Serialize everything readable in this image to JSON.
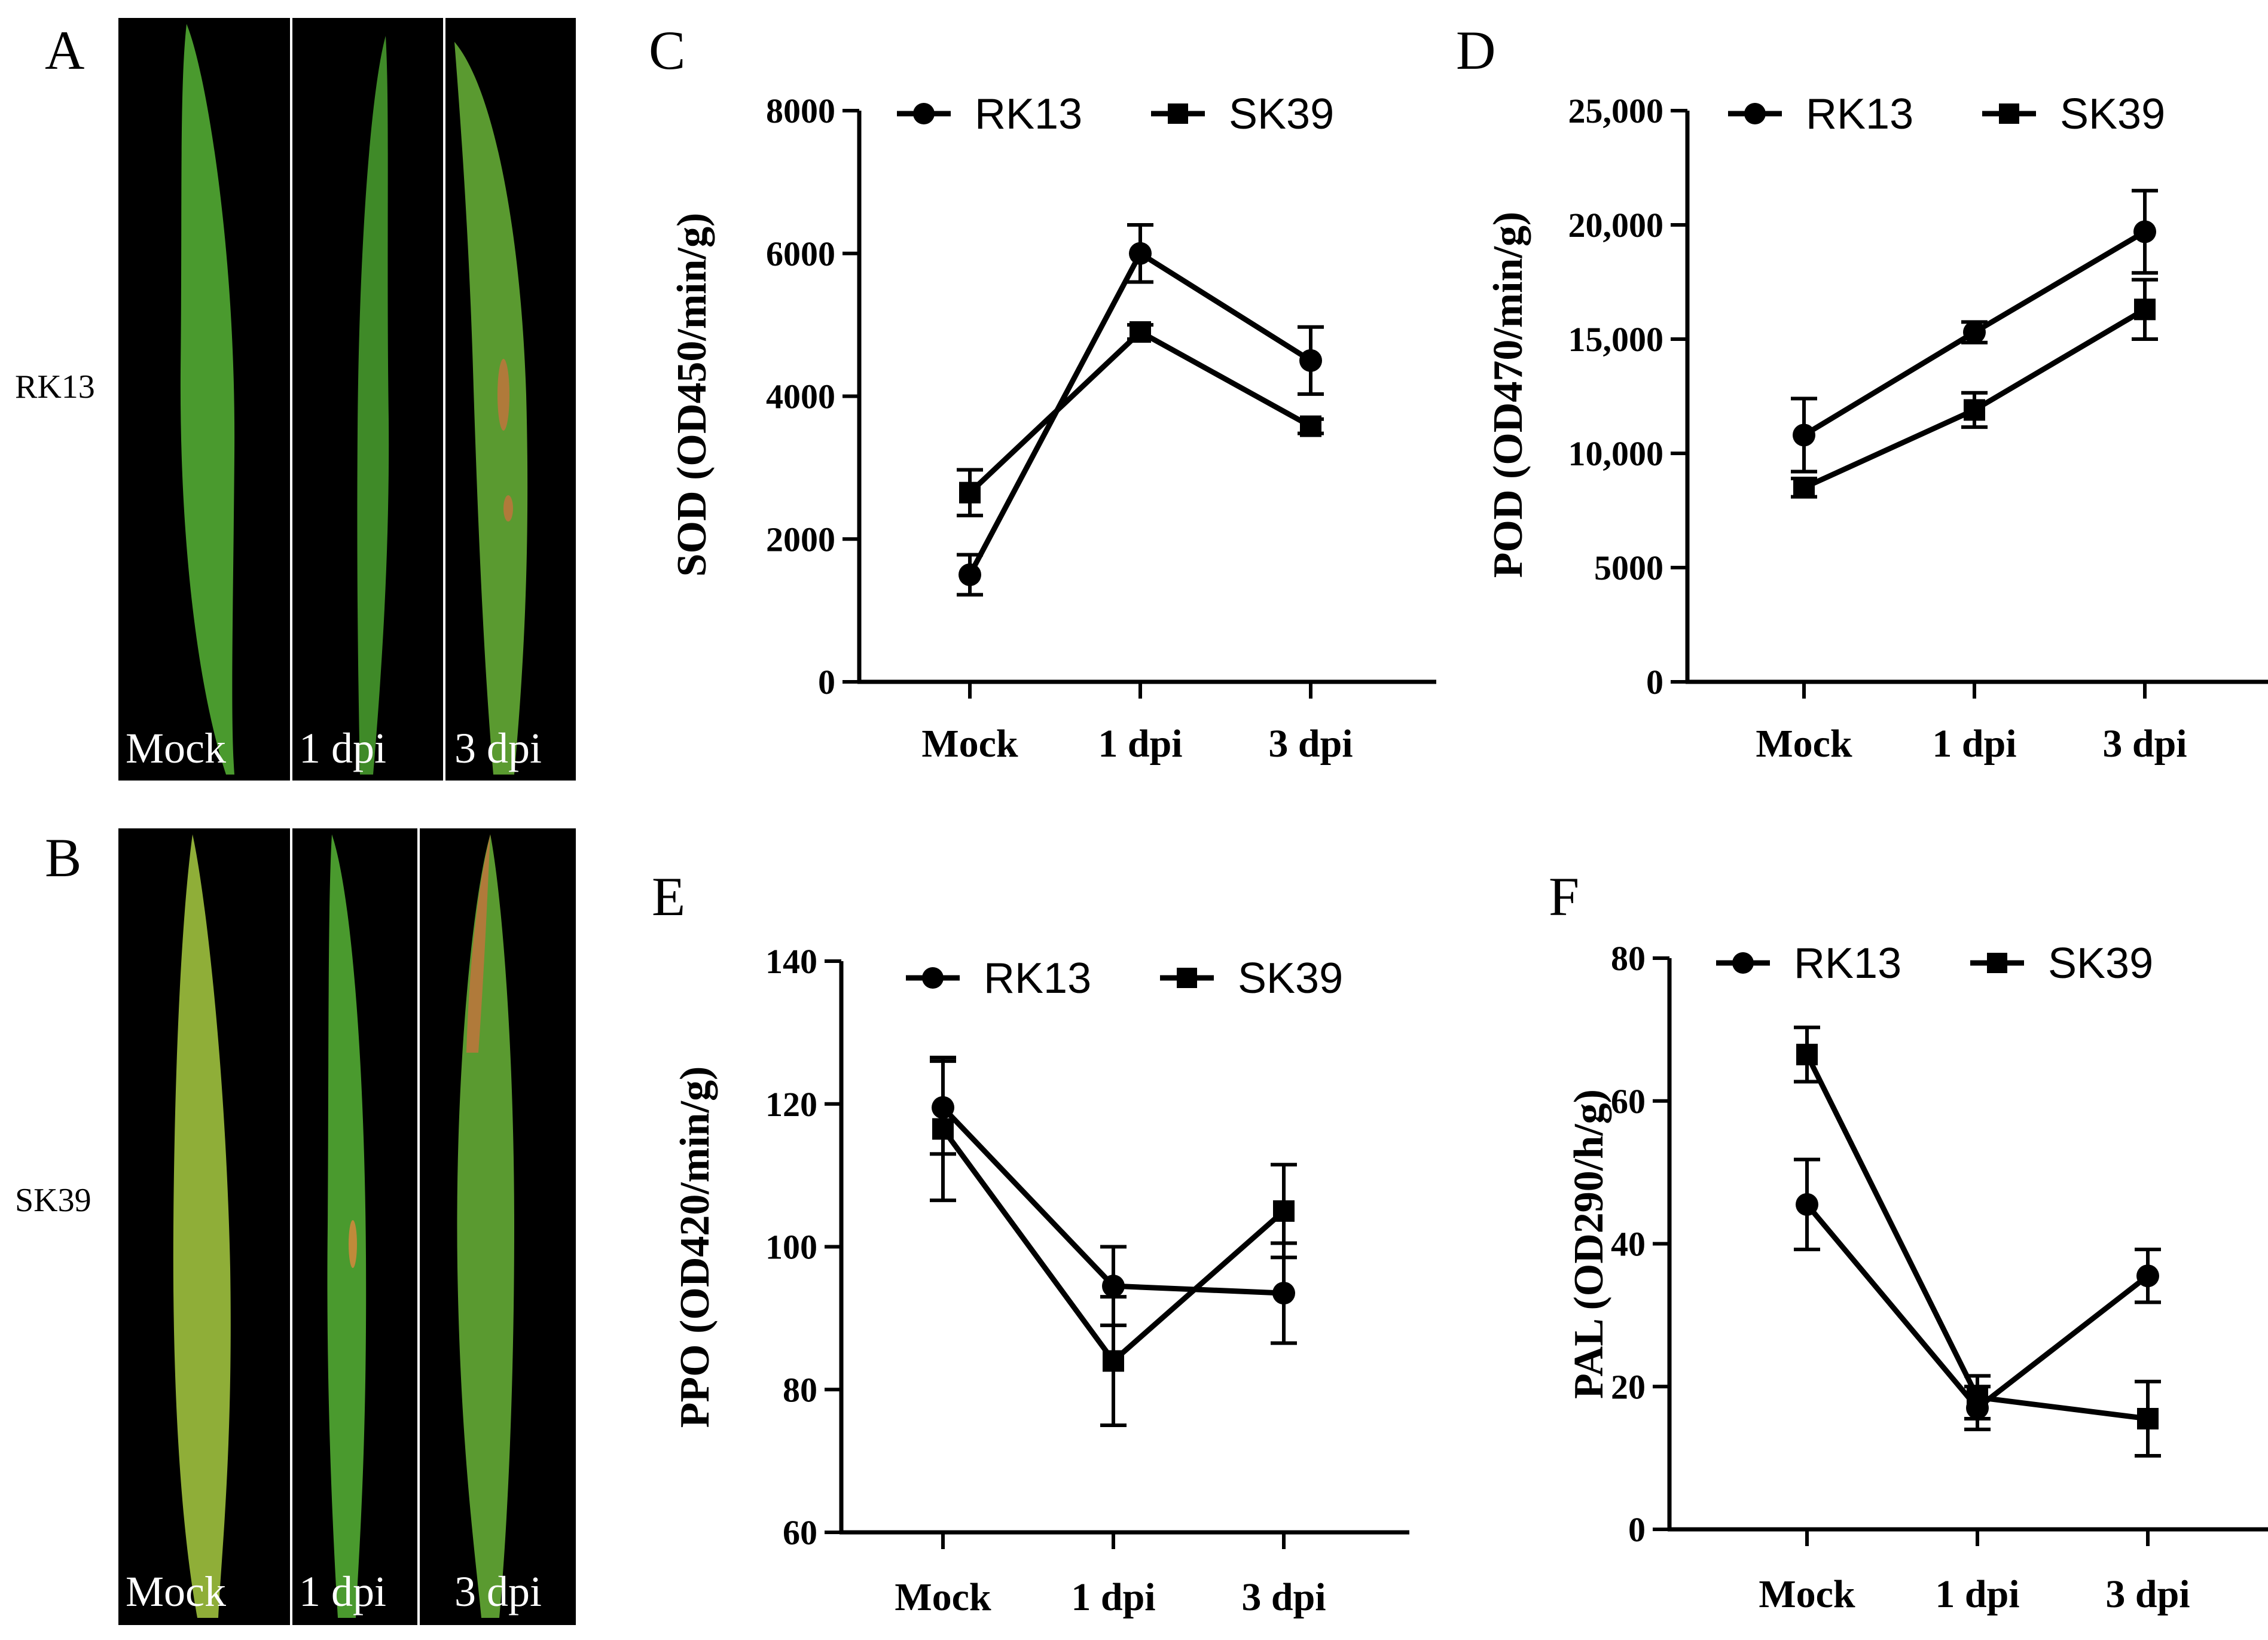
{
  "photos": {
    "panels": [
      {
        "letter": "A",
        "row_label": "RK13",
        "captions": [
          "Mock",
          "1 dpi",
          "3 dpi"
        ]
      },
      {
        "letter": "B",
        "row_label": "SK39",
        "captions": [
          "Mock",
          "1 dpi",
          "3 dpi"
        ]
      }
    ],
    "colors": {
      "background": "#000000",
      "leaf_healthy": "#3f8f2a",
      "leaf_yellow": "#a6b33c",
      "lesion": "#b07a3a"
    }
  },
  "chart_data": [
    {
      "letter": "C",
      "type": "line",
      "ylabel": "SOD (OD450/min/g)",
      "categories": [
        "Mock",
        "1 dpi",
        "3 dpi"
      ],
      "ylim": [
        0,
        8000
      ],
      "yticks": [
        0,
        2000,
        4000,
        6000,
        8000
      ],
      "ytick_labels": [
        "0",
        "2000",
        "4000",
        "6000",
        "8000"
      ],
      "legend": "top",
      "series": [
        {
          "name": "RK13",
          "marker": "circle",
          "values": [
            1500,
            6000,
            4500
          ],
          "errors": [
            280,
            400,
            470
          ]
        },
        {
          "name": "SK39",
          "marker": "square",
          "values": [
            2650,
            4900,
            3580
          ],
          "errors": [
            320,
            100,
            100
          ]
        }
      ]
    },
    {
      "letter": "D",
      "type": "line",
      "ylabel": "POD (OD470/min/g)",
      "categories": [
        "Mock",
        "1 dpi",
        "3 dpi"
      ],
      "ylim": [
        0,
        25000
      ],
      "yticks": [
        0,
        5000,
        10000,
        15000,
        20000,
        25000
      ],
      "ytick_labels": [
        "0",
        "5000",
        "10,000",
        "15,000",
        "20,000",
        "25,000"
      ],
      "legend": "top",
      "series": [
        {
          "name": "RK13",
          "marker": "circle",
          "values": [
            10800,
            15300,
            19700
          ],
          "errors": [
            1600,
            450,
            1800
          ]
        },
        {
          "name": "SK39",
          "marker": "square",
          "values": [
            8500,
            11900,
            16300
          ],
          "errors": [
            400,
            750,
            1300
          ]
        }
      ]
    },
    {
      "letter": "E",
      "type": "line",
      "ylabel": "PPO (OD420/min/g)",
      "categories": [
        "Mock",
        "1 dpi",
        "3 dpi"
      ],
      "ylim": [
        60,
        140
      ],
      "yticks": [
        60,
        80,
        100,
        120,
        140
      ],
      "ytick_labels": [
        "60",
        "80",
        "100",
        "120",
        "140"
      ],
      "legend": "top",
      "series": [
        {
          "name": "RK13",
          "marker": "circle",
          "values": [
            119.5,
            94.5,
            93.5
          ],
          "errors": [
            6.5,
            5.5,
            7.0
          ]
        },
        {
          "name": "SK39",
          "marker": "square",
          "values": [
            116.5,
            84.0,
            105.0
          ],
          "errors": [
            10.0,
            9.0,
            6.5
          ]
        }
      ]
    },
    {
      "letter": "F",
      "type": "line",
      "ylabel": "PAL (OD290/h/g)",
      "categories": [
        "Mock",
        "1 dpi",
        "3 dpi"
      ],
      "ylim": [
        0,
        80
      ],
      "yticks": [
        0,
        20,
        40,
        60,
        80
      ],
      "ytick_labels": [
        "0",
        "20",
        "40",
        "60",
        "80"
      ],
      "legend": "top",
      "series": [
        {
          "name": "RK13",
          "marker": "circle",
          "values": [
            45.5,
            17.0,
            35.5
          ],
          "errors": [
            6.3,
            3.0,
            3.7
          ]
        },
        {
          "name": "SK39",
          "marker": "square",
          "values": [
            66.5,
            18.5,
            15.5
          ],
          "errors": [
            3.8,
            3.0,
            5.2
          ]
        }
      ]
    }
  ]
}
